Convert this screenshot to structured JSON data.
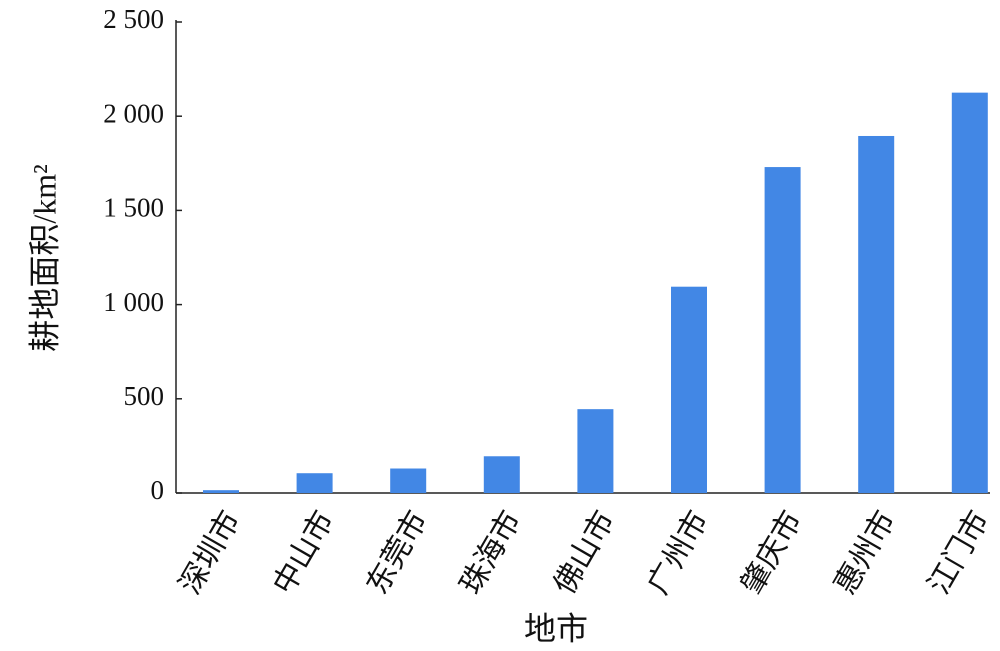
{
  "chart_data": {
    "type": "bar",
    "x_label": "地市",
    "y_label": "耕地面积/km²",
    "categories": [
      "深圳市",
      "中山市",
      "东莞市",
      "珠海市",
      "佛山市",
      "广州市",
      "肇庆市",
      "惠州市",
      "江门市"
    ],
    "values": [
      15,
      105,
      130,
      195,
      445,
      1095,
      1730,
      1895,
      2125
    ],
    "color": "#4287e5",
    "ylim": [
      0,
      2500
    ],
    "yticks": [
      0,
      500,
      {
        "value": 1000,
        "label": "1 000"
      },
      {
        "value": 1500,
        "label": "1 500"
      },
      {
        "value": 2000,
        "label": "2 000"
      },
      {
        "value": 2500,
        "label": "2 500"
      }
    ]
  }
}
